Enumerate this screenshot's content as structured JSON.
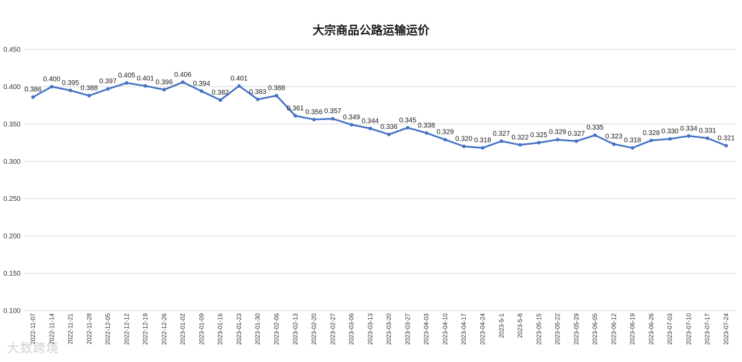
{
  "watermark": "大数跨境",
  "colors": {
    "line": "#4472C4",
    "grid": "#d9d9d9"
  },
  "chart_data": {
    "type": "line",
    "title": "大宗商品公路运输运价",
    "xlabel": "",
    "ylabel": "",
    "ylim": [
      0.1,
      0.45
    ],
    "yticks": [
      "0.100",
      "0.150",
      "0.200",
      "0.250",
      "0.300",
      "0.350",
      "0.400",
      "0.450"
    ],
    "grid": true,
    "legend": "none",
    "x": [
      "2022-11-07",
      "2022-11-14",
      "2022-11-21",
      "2022-11-28",
      "2022-12-05",
      "2022-12-12",
      "2022-12-19",
      "2022-12-26",
      "2023-01-02",
      "2023-01-09",
      "2023-01-16",
      "2023-01-23",
      "2023-01-30",
      "2023-02-06",
      "2023-02-13",
      "2023-02-20",
      "2023-02-27",
      "2023-03-06",
      "2023-03-13",
      "2023-03-20",
      "2023-03-27",
      "2023-04-03",
      "2023-04-10",
      "2023-04-17",
      "2023-04-24",
      "2023-5-1",
      "2023-5-8",
      "2023-05-15",
      "2023-05-22",
      "2023-05-29",
      "2023-06-05",
      "2023-06-12",
      "2023-06-19",
      "2023-06-26",
      "2023-07-03",
      "2023-07-10",
      "2023-07-17",
      "2023-07-24"
    ],
    "series": [
      {
        "values": [
          0.386,
          0.4,
          0.395,
          0.388,
          0.397,
          0.405,
          0.401,
          0.396,
          0.406,
          0.394,
          0.382,
          0.401,
          0.383,
          0.388,
          0.361,
          0.356,
          0.357,
          0.349,
          0.344,
          0.336,
          0.345,
          0.338,
          0.329,
          0.32,
          0.318,
          0.327,
          0.322,
          0.325,
          0.329,
          0.327,
          0.335,
          0.323,
          0.318,
          0.328,
          0.33,
          0.334,
          0.331,
          0.321
        ],
        "labels": [
          "0.386",
          "0.400",
          "0.395",
          "0.388",
          "0.397",
          "0.405",
          "0.401",
          "0.396",
          "0.406",
          "0.394",
          "0.382",
          "0.401",
          "0.383",
          "0.388",
          "0.361",
          "0.356",
          "0.357",
          "0.349",
          "0.344",
          "0.336",
          "0.345",
          "0.338",
          "0.329",
          "0.320",
          "0.318",
          "0.327",
          "0.322",
          "0.325",
          "0.329",
          "0.327",
          "0.335",
          "0.323",
          "0.318",
          "0.328",
          "0.330",
          "0.334",
          "0.331",
          "0.321"
        ]
      }
    ]
  }
}
